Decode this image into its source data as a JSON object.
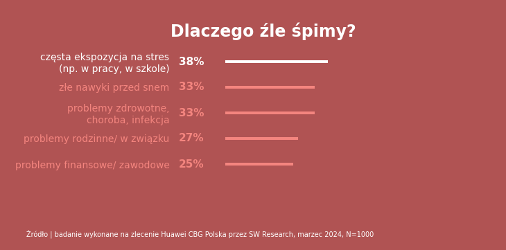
{
  "chart_data": {
    "type": "bar",
    "orientation": "horizontal",
    "title": "Dlaczego źle śpimy?",
    "categories": [
      "częsta ekspozycja na stres\n(np. w pracy, w szkole)",
      "złe nawyki przed snem",
      "problemy zdrowotne,\nchoroba, infekcja",
      "problemy rodzinne/ w związku",
      "problemy finansowe/ zawodowe"
    ],
    "values": [
      38,
      33,
      33,
      27,
      25
    ],
    "value_labels": [
      "38%",
      "33%",
      "33%",
      "27%",
      "25%"
    ],
    "colors": [
      "#ffffff",
      "#f4857f",
      "#f4857f",
      "#f4857f",
      "#f4857f"
    ],
    "data_labels": true,
    "tick_labels": "y",
    "source": "Źródło | badanie wykonane na zlecenie Huawei CBG Polska przez SW Research, marzec 2024, N=1000"
  }
}
